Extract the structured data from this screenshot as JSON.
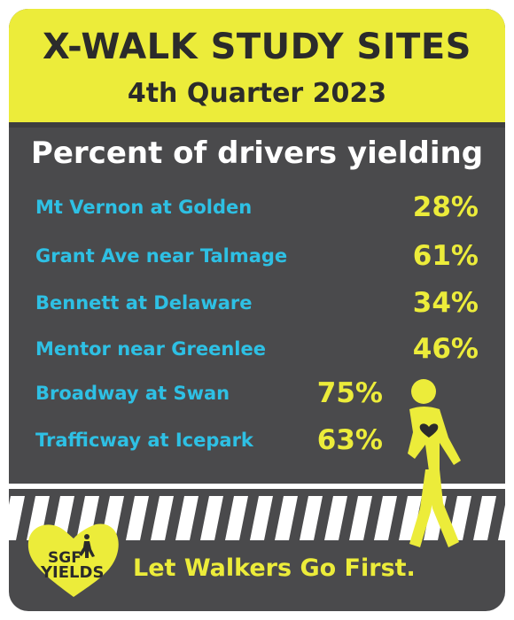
{
  "header": {
    "title": "X-WALK STUDY SITES",
    "quarter": "4th Quarter 2023"
  },
  "subtitle": "Percent of drivers yielding",
  "sites": [
    {
      "name": "Mt Vernon at Golden",
      "percent": "28%"
    },
    {
      "name": "Grant Ave near Talmage",
      "percent": "61%"
    },
    {
      "name": "Bennett at Delaware",
      "percent": "34%"
    },
    {
      "name": "Mentor near Greenlee",
      "percent": "46%"
    },
    {
      "name": "Broadway at Swan",
      "percent": "75%"
    },
    {
      "name": "Trafficway at Icepark",
      "percent": "63%"
    }
  ],
  "logo": {
    "line1": "SGF",
    "line2": "YIELDS"
  },
  "tagline": "Let Walkers Go First.",
  "icons": {
    "walker": "pedestrian-walking-icon",
    "heart": "heart-icon",
    "crosswalk": "crosswalk-stripes-icon"
  },
  "colors": {
    "background": "#4a4a4c",
    "accent_yellow": "#ecec3a",
    "site_blue": "#2ec0e4",
    "text_dark": "#2b2b2b",
    "white": "#ffffff"
  }
}
